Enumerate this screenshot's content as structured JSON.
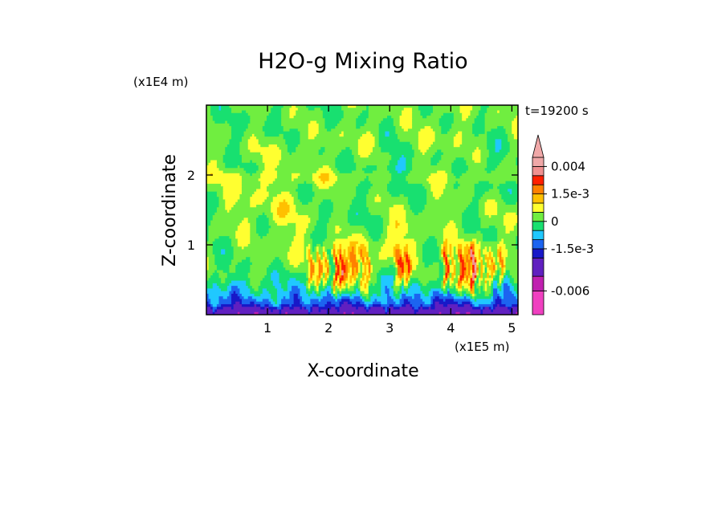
{
  "chart_data": {
    "type": "heatmap",
    "title": "H2O-g Mixing Ratio",
    "xlabel": "X-coordinate",
    "ylabel": "Z-coordinate",
    "x_unit": "(x1E5 m)",
    "y_unit": "(x1E4 m)",
    "time_label": "t=19200 s",
    "xlim": [
      0,
      5.1
    ],
    "ylim": [
      0,
      3
    ],
    "x_ticks": [
      1,
      2,
      3,
      4,
      5
    ],
    "y_ticks": [
      1,
      2
    ],
    "colorbar": {
      "levels": [
        -0.008,
        -0.006,
        -0.004,
        -0.002,
        -0.0015,
        -0.001,
        -0.0005,
        0,
        0.0005,
        0.001,
        0.0015,
        0.002,
        0.003,
        0.004,
        0.005
      ],
      "colors": [
        "#f040c0",
        "#c020b0",
        "#6020c0",
        "#1818c8",
        "#1c64f0",
        "#20c8ff",
        "#18e070",
        "#70ee40",
        "#ffff30",
        "#ffc000",
        "#ff8000",
        "#ff2000",
        "#f09090",
        "#f0a8a8"
      ],
      "tick_labels": [
        {
          "value": 0.004,
          "label": "0.004"
        },
        {
          "value": 0.0015,
          "label": "1.5e-3"
        },
        {
          "value": 0,
          "label": "0"
        },
        {
          "value": -0.0015,
          "label": "-1.5e-3"
        },
        {
          "value": -0.006,
          "label": "-0.006"
        }
      ],
      "extend": "max"
    }
  }
}
